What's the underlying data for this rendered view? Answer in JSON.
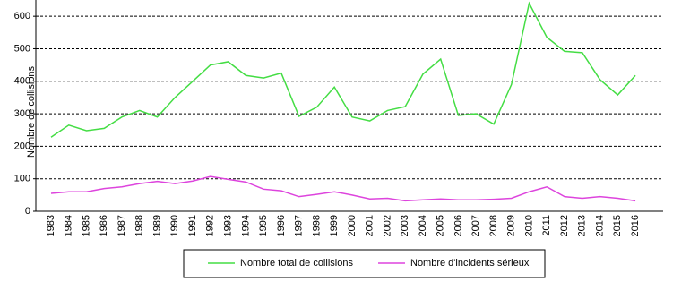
{
  "chart_data": {
    "type": "line",
    "y_label": "Nombre de collisions",
    "categories": [
      "1983",
      "1984",
      "1985",
      "1986",
      "1987",
      "1988",
      "1989",
      "1990",
      "1991",
      "1992",
      "1993",
      "1994",
      "1995",
      "1996",
      "1997",
      "1998",
      "1999",
      "2000",
      "2001",
      "2002",
      "2003",
      "2004",
      "2005",
      "2006",
      "2007",
      "2008",
      "2009",
      "2010",
      "2011",
      "2012",
      "2013",
      "2014",
      "2015",
      "2016"
    ],
    "series": [
      {
        "name": "Nombre total de collisions",
        "color": "#44dd44",
        "values": [
          228,
          265,
          248,
          255,
          290,
          310,
          290,
          350,
          400,
          450,
          460,
          418,
          410,
          425,
          292,
          320,
          382,
          290,
          278,
          310,
          322,
          422,
          468,
          295,
          300,
          268,
          390,
          640,
          535,
          492,
          488,
          405,
          358,
          418
        ]
      },
      {
        "name": "Nombre d'incidents sérieux",
        "color": "#dd44dd",
        "values": [
          55,
          60,
          60,
          70,
          75,
          85,
          92,
          85,
          93,
          107,
          98,
          90,
          68,
          63,
          45,
          52,
          60,
          50,
          38,
          40,
          32,
          35,
          38,
          35,
          35,
          37,
          40,
          60,
          75,
          45,
          40,
          45,
          40,
          32
        ]
      }
    ],
    "ylim": [
      0,
      650
    ],
    "yticks": [
      0,
      100,
      200,
      300,
      400,
      500,
      600
    ],
    "grid": true
  }
}
